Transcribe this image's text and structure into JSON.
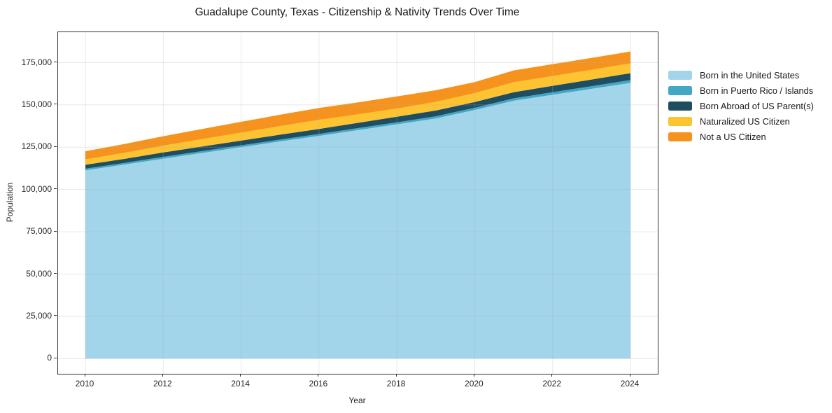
{
  "title": "Guadalupe County, Texas - Citizenship & Nativity Trends Over Time",
  "chart_data": {
    "type": "area",
    "stacked": true,
    "title": "Guadalupe County, Texas - Citizenship & Nativity Trends Over Time",
    "xlabel": "Year",
    "ylabel": "Population",
    "grid": true,
    "legend_position": "right",
    "x": [
      2010,
      2011,
      2012,
      2013,
      2014,
      2015,
      2016,
      2017,
      2018,
      2019,
      2020,
      2021,
      2022,
      2023,
      2024
    ],
    "series": [
      {
        "name": "Born in the United States",
        "color": "#a2d4ea",
        "values": [
          111300,
          114700,
          118200,
          121600,
          125000,
          128400,
          131700,
          135100,
          138500,
          142000,
          147000,
          152500,
          156000,
          159500,
          163000
        ]
      },
      {
        "name": "Born in Puerto Rico / Islands",
        "color": "#44a7c4",
        "values": [
          1000,
          1000,
          1100,
          1100,
          1100,
          1100,
          1100,
          1200,
          1200,
          1300,
          1300,
          1400,
          1500,
          1600,
          1700
        ]
      },
      {
        "name": "Born Abroad of US Parent(s)",
        "color": "#1f4e63",
        "values": [
          2300,
          2400,
          2600,
          2700,
          2800,
          2900,
          3000,
          3100,
          3300,
          3400,
          3400,
          3600,
          3800,
          3900,
          4100
        ]
      },
      {
        "name": "Naturalized US Citizen",
        "color": "#fdc330",
        "values": [
          3200,
          3600,
          4000,
          4400,
          4700,
          5100,
          5400,
          5000,
          4900,
          5100,
          5300,
          5900,
          5800,
          5800,
          5800
        ]
      },
      {
        "name": "Not a US Citizen",
        "color": "#f6931e",
        "values": [
          4800,
          5200,
          5600,
          6000,
          6400,
          6700,
          7000,
          7100,
          7100,
          6900,
          6500,
          7000,
          7000,
          7000,
          7000
        ]
      }
    ],
    "xlim": [
      2009.3,
      2024.7
    ],
    "ylim": [
      -9000,
      193000
    ],
    "xticks": [
      2010,
      2012,
      2014,
      2016,
      2018,
      2020,
      2022,
      2024
    ],
    "xtick_labels": [
      "2010",
      "2012",
      "2014",
      "2016",
      "2018",
      "2020",
      "2022",
      "2024"
    ],
    "yticks": [
      0,
      25000,
      50000,
      75000,
      100000,
      125000,
      150000,
      175000
    ],
    "ytick_labels": [
      "0",
      "25,000",
      "50,000",
      "75,000",
      "100,000",
      "125,000",
      "150,000",
      "175,000"
    ],
    "grid_color": "#b0b0b0",
    "grid_opacity": 0.3,
    "spine_color": "#333333"
  }
}
